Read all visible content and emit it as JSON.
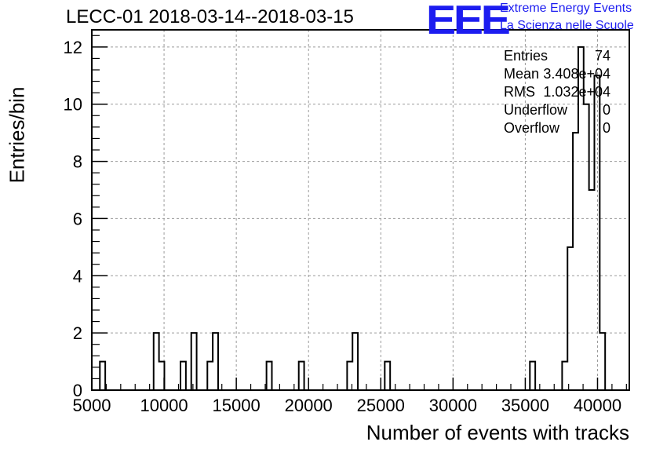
{
  "chart_data": {
    "type": "bar",
    "title": "LECC-01 2018-03-14--2018-03-15",
    "xlabel": "Number of events with tracks",
    "ylabel": "Entries/bin",
    "xlim": [
      5000,
      42200
    ],
    "ylim": [
      0,
      12.6
    ],
    "bin_width": 372,
    "x_ticks": [
      5000,
      10000,
      15000,
      20000,
      25000,
      30000,
      35000,
      40000
    ],
    "y_ticks": [
      0,
      2,
      4,
      6,
      8,
      10,
      12
    ],
    "grid": true,
    "bins": [
      {
        "x": 5558,
        "count": 1
      },
      {
        "x": 9278,
        "count": 2
      },
      {
        "x": 9650,
        "count": 1
      },
      {
        "x": 11138,
        "count": 1
      },
      {
        "x": 11882,
        "count": 2
      },
      {
        "x": 12998,
        "count": 1
      },
      {
        "x": 13370,
        "count": 2
      },
      {
        "x": 17090,
        "count": 1
      },
      {
        "x": 19322,
        "count": 1
      },
      {
        "x": 22670,
        "count": 1
      },
      {
        "x": 23042,
        "count": 2
      },
      {
        "x": 25274,
        "count": 1
      },
      {
        "x": 35318,
        "count": 1
      },
      {
        "x": 37550,
        "count": 1
      },
      {
        "x": 37922,
        "count": 5
      },
      {
        "x": 38294,
        "count": 9
      },
      {
        "x": 38666,
        "count": 12
      },
      {
        "x": 39038,
        "count": 10
      },
      {
        "x": 39410,
        "count": 7
      },
      {
        "x": 39782,
        "count": 11
      },
      {
        "x": 40154,
        "count": 2
      }
    ]
  },
  "logo": {
    "text": "EEE",
    "line1": "Extreme Energy Events",
    "line2": "La Scienza nelle Scuole",
    "color": "#1c1cf0"
  },
  "stats": [
    {
      "label": "Entries",
      "value": "74"
    },
    {
      "label": "Mean",
      "value": "3.408e+04"
    },
    {
      "label": "RMS",
      "value": "1.032e+04"
    },
    {
      "label": "Underflow",
      "value": "0"
    },
    {
      "label": "Overflow",
      "value": "0"
    }
  ]
}
